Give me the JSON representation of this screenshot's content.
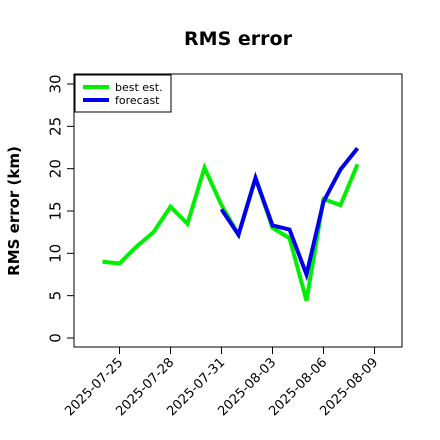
{
  "chart_data": {
    "type": "line",
    "title": "RMS error",
    "xlabel": "",
    "ylabel": "RMS error (km)",
    "ylim": [
      0,
      30
    ],
    "yticks": [
      0,
      5,
      10,
      15,
      20,
      25,
      30
    ],
    "xticks": [
      "2025-07-25",
      "2025-07-28",
      "2025-07-31",
      "2025-08-03",
      "2025-08-06",
      "2025-08-09"
    ],
    "xtick_colors": [
      "#000000",
      "#000000",
      "#228b22",
      "#000000",
      "#000000",
      "#000000"
    ],
    "grid": false,
    "legend": "top-left",
    "series": [
      {
        "name": "best est.",
        "color": "#00ee00",
        "x": [
          "2025-07-24",
          "2025-07-25",
          "2025-07-26",
          "2025-07-27",
          "2025-07-28",
          "2025-07-29",
          "2025-07-30",
          "2025-07-31",
          "2025-08-01",
          "2025-08-02",
          "2025-08-03",
          "2025-08-04",
          "2025-08-05",
          "2025-08-06",
          "2025-08-07",
          "2025-08-08"
        ],
        "values": [
          9.0,
          8.8,
          10.8,
          12.5,
          15.5,
          13.5,
          20.1,
          15.7,
          12.2,
          18.9,
          13.0,
          11.8,
          4.4,
          16.4,
          15.7,
          20.5
        ]
      },
      {
        "name": "forecast",
        "color": "#0000ee",
        "x": [
          "2025-07-31",
          "2025-08-01",
          "2025-08-02",
          "2025-08-03",
          "2025-08-04",
          "2025-08-05",
          "2025-08-06",
          "2025-08-07",
          "2025-08-08"
        ],
        "values": [
          15.2,
          12.2,
          18.9,
          13.3,
          12.8,
          7.5,
          16.1,
          19.9,
          22.4
        ]
      }
    ]
  }
}
